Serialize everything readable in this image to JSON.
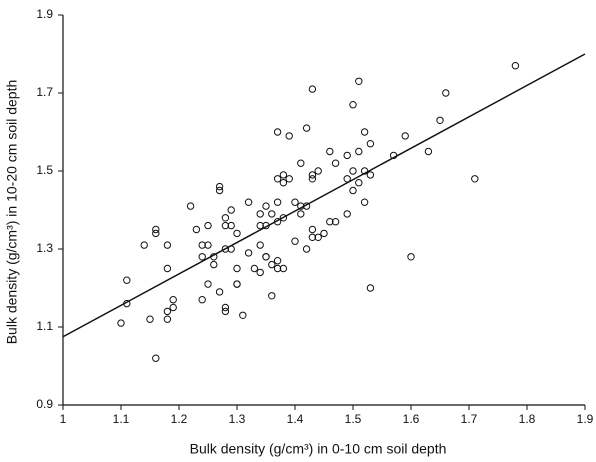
{
  "chart_data": {
    "type": "scatter",
    "x_label": "Bulk density (g/cm³) in 0-10 cm soil depth",
    "y_label": "Bulk density (g/cm³) in 10-20 cm soil depth",
    "x": [
      1.1,
      1.11,
      1.11,
      1.14,
      1.15,
      1.16,
      1.16,
      1.16,
      1.18,
      1.18,
      1.18,
      1.18,
      1.19,
      1.19,
      1.22,
      1.23,
      1.24,
      1.24,
      1.24,
      1.25,
      1.25,
      1.26,
      1.25,
      1.26,
      1.27,
      1.27,
      1.27,
      1.28,
      1.28,
      1.28,
      1.28,
      1.28,
      1.29,
      1.29,
      1.29,
      1.3,
      1.3,
      1.3,
      1.3,
      1.31,
      1.32,
      1.32,
      1.33,
      1.34,
      1.34,
      1.34,
      1.34,
      1.35,
      1.35,
      1.35,
      1.35,
      1.36,
      1.36,
      1.36,
      1.37,
      1.37,
      1.37,
      1.37,
      1.37,
      1.37,
      1.38,
      1.38,
      1.38,
      1.38,
      1.39,
      1.39,
      1.4,
      1.4,
      1.41,
      1.41,
      1.41,
      1.42,
      1.42,
      1.42,
      1.43,
      1.43,
      1.43,
      1.43,
      1.43,
      1.44,
      1.44,
      1.45,
      1.46,
      1.46,
      1.47,
      1.47,
      1.49,
      1.49,
      1.49,
      1.5,
      1.5,
      1.5,
      1.51,
      1.51,
      1.51,
      1.52,
      1.52,
      1.52,
      1.53,
      1.53,
      1.53,
      1.57,
      1.59,
      1.6,
      1.63,
      1.65,
      1.66,
      1.71,
      1.78
    ],
    "values": [
      1.11,
      1.22,
      1.16,
      1.31,
      1.12,
      1.35,
      1.34,
      1.02,
      1.31,
      1.14,
      1.25,
      1.12,
      1.17,
      1.15,
      1.41,
      1.35,
      1.17,
      1.28,
      1.31,
      1.36,
      1.21,
      1.26,
      1.31,
      1.28,
      1.46,
      1.45,
      1.19,
      1.15,
      1.14,
      1.38,
      1.36,
      1.3,
      1.4,
      1.36,
      1.3,
      1.21,
      1.25,
      1.34,
      1.21,
      1.13,
      1.42,
      1.29,
      1.25,
      1.36,
      1.39,
      1.24,
      1.31,
      1.41,
      1.28,
      1.28,
      1.36,
      1.18,
      1.26,
      1.39,
      1.27,
      1.6,
      1.48,
      1.42,
      1.37,
      1.25,
      1.25,
      1.49,
      1.47,
      1.38,
      1.48,
      1.59,
      1.42,
      1.32,
      1.41,
      1.39,
      1.52,
      1.41,
      1.61,
      1.3,
      1.49,
      1.35,
      1.71,
      1.48,
      1.33,
      1.5,
      1.33,
      1.34,
      1.55,
      1.37,
      1.37,
      1.52,
      1.39,
      1.54,
      1.48,
      1.5,
      1.45,
      1.67,
      1.55,
      1.47,
      1.73,
      1.5,
      1.42,
      1.6,
      1.57,
      1.2,
      1.49,
      1.54,
      1.59,
      1.28,
      1.55,
      1.63,
      1.7,
      1.48,
      1.77
    ],
    "color": "#111111",
    "trend_line": {
      "x": [
        1,
        1.9
      ],
      "y": [
        1.075,
        1.8
      ]
    },
    "xlim": [
      1,
      1.9
    ],
    "xticks": [
      1,
      1.1,
      1.2,
      1.3,
      1.4,
      1.5,
      1.6,
      1.7,
      1.8,
      1.9
    ],
    "ylim": [
      0.9,
      1.9
    ],
    "yticks": [
      0.9,
      1.1,
      1.3,
      1.5,
      1.7,
      1.9
    ],
    "grid": false
  }
}
